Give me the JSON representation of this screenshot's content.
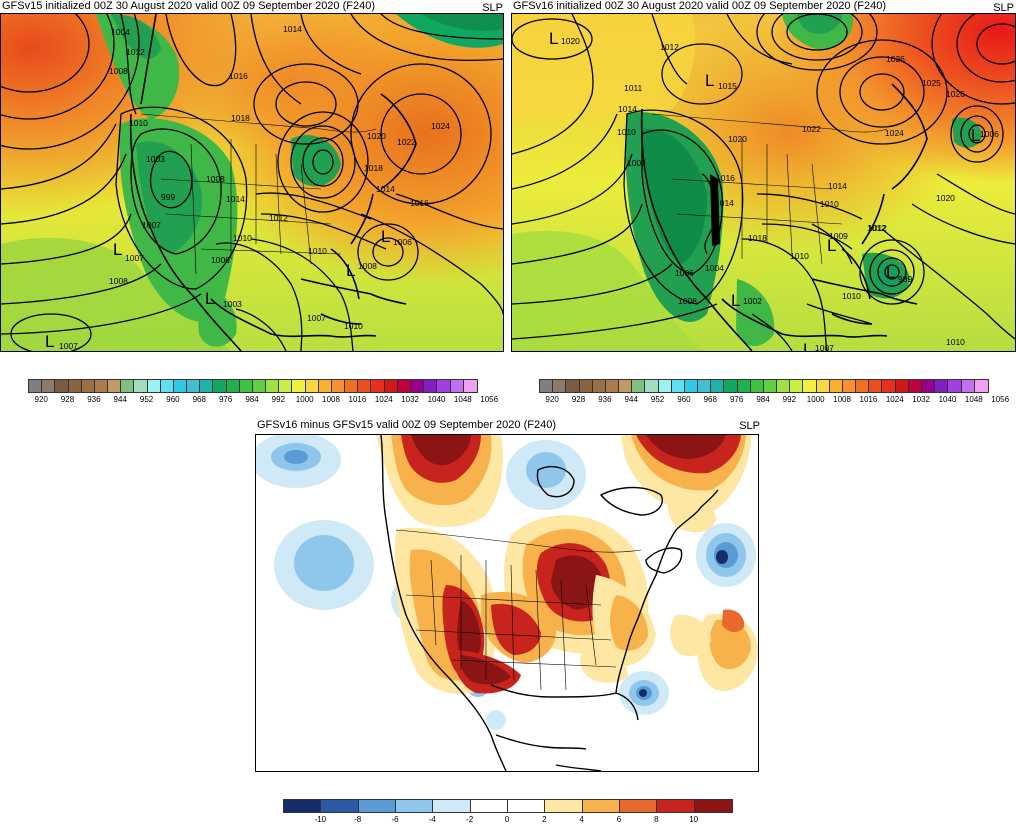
{
  "panels": [
    {
      "title": "GFSv15 initialized 00Z 30 August 2020 valid 00Z 09 September 2020 (F240)",
      "variable": "SLP",
      "isobar_labels": [
        "1004",
        "1012",
        "1008",
        "1010",
        "1003",
        "1016",
        "1018",
        "999",
        "1008",
        "1014",
        "1012",
        "1010",
        "1006",
        "1007",
        "1008",
        "1003",
        "1007",
        "1010",
        "1006",
        "1008",
        "1020",
        "1022",
        "1024",
        "1018",
        "1016",
        "1014",
        "1014",
        "1007",
        "1010"
      ],
      "lows": [
        {
          "label": "L",
          "value": "1007"
        },
        {
          "label": "L",
          "value": "1003"
        },
        {
          "label": "L",
          "value": "1006"
        },
        {
          "label": "L",
          "value": "1007"
        },
        {
          "label": "L",
          "value": "1008"
        }
      ]
    },
    {
      "title": "GFSv16 initialized 00Z 30 August 2020 valid 00Z 09 September 2020 (F240)",
      "variable": "SLP",
      "isobar_labels": [
        "1012",
        "1011",
        "1015",
        "1010",
        "1014",
        "1006",
        "1016",
        "1014",
        "1020",
        "1022",
        "1026",
        "1025",
        "1026",
        "1024",
        "1020",
        "1018",
        "1012",
        "1009",
        "1010",
        "1004",
        "1006",
        "1008",
        "1010",
        "1010",
        "1014",
        "1010",
        "1012"
      ],
      "lows": [
        {
          "label": "L",
          "value": "1020"
        },
        {
          "label": "L",
          "value": "1012"
        },
        {
          "label": "L",
          "value": "1015"
        },
        {
          "label": "L",
          "value": "1006"
        },
        {
          "label": "L",
          "value": "989"
        },
        {
          "label": "L",
          "value": "1002"
        },
        {
          "label": "L",
          "value": "1007"
        }
      ]
    },
    {
      "title": "GFSv16 minus GFSv15 valid 00Z 09 September 2020 (F240)",
      "variable": "SLP"
    }
  ],
  "slp_colorbar": {
    "ticks": [
      "920",
      "928",
      "936",
      "944",
      "952",
      "960",
      "968",
      "976",
      "984",
      "992",
      "1000",
      "1008",
      "1016",
      "1024",
      "1032",
      "1040",
      "1048",
      "1056"
    ],
    "colors": [
      "#7f7f7f",
      "#8c7b6b",
      "#7a5c43",
      "#8a6440",
      "#9b6f45",
      "#a87c4e",
      "#bf9a62",
      "#7fbf7f",
      "#9fdfbf",
      "#9ff0f0",
      "#5fe0f0",
      "#30c8e8",
      "#3fbfcf",
      "#1fb2a8",
      "#10a860",
      "#20b050",
      "#40c040",
      "#60d040",
      "#a0e040",
      "#c8f040",
      "#f0f040",
      "#f8d840",
      "#f8b030",
      "#f89030",
      "#f07020",
      "#e85020",
      "#e83020",
      "#d01818",
      "#c00040",
      "#9a0090",
      "#8020c0",
      "#a040e0",
      "#c070f0",
      "#f0a0f0"
    ]
  },
  "diff_colorbar": {
    "ticks": [
      "-10",
      "-8",
      "-6",
      "-4",
      "-2",
      "0",
      "2",
      "4",
      "6",
      "8",
      "10"
    ],
    "colors": [
      "#162c6b",
      "#2c5aa6",
      "#5b9bd5",
      "#8fc6ec",
      "#cfe9f7",
      "#ffffff",
      "#ffffff",
      "#fde7a3",
      "#f7b24c",
      "#e9682c",
      "#c8241e",
      "#8b1414"
    ]
  }
}
